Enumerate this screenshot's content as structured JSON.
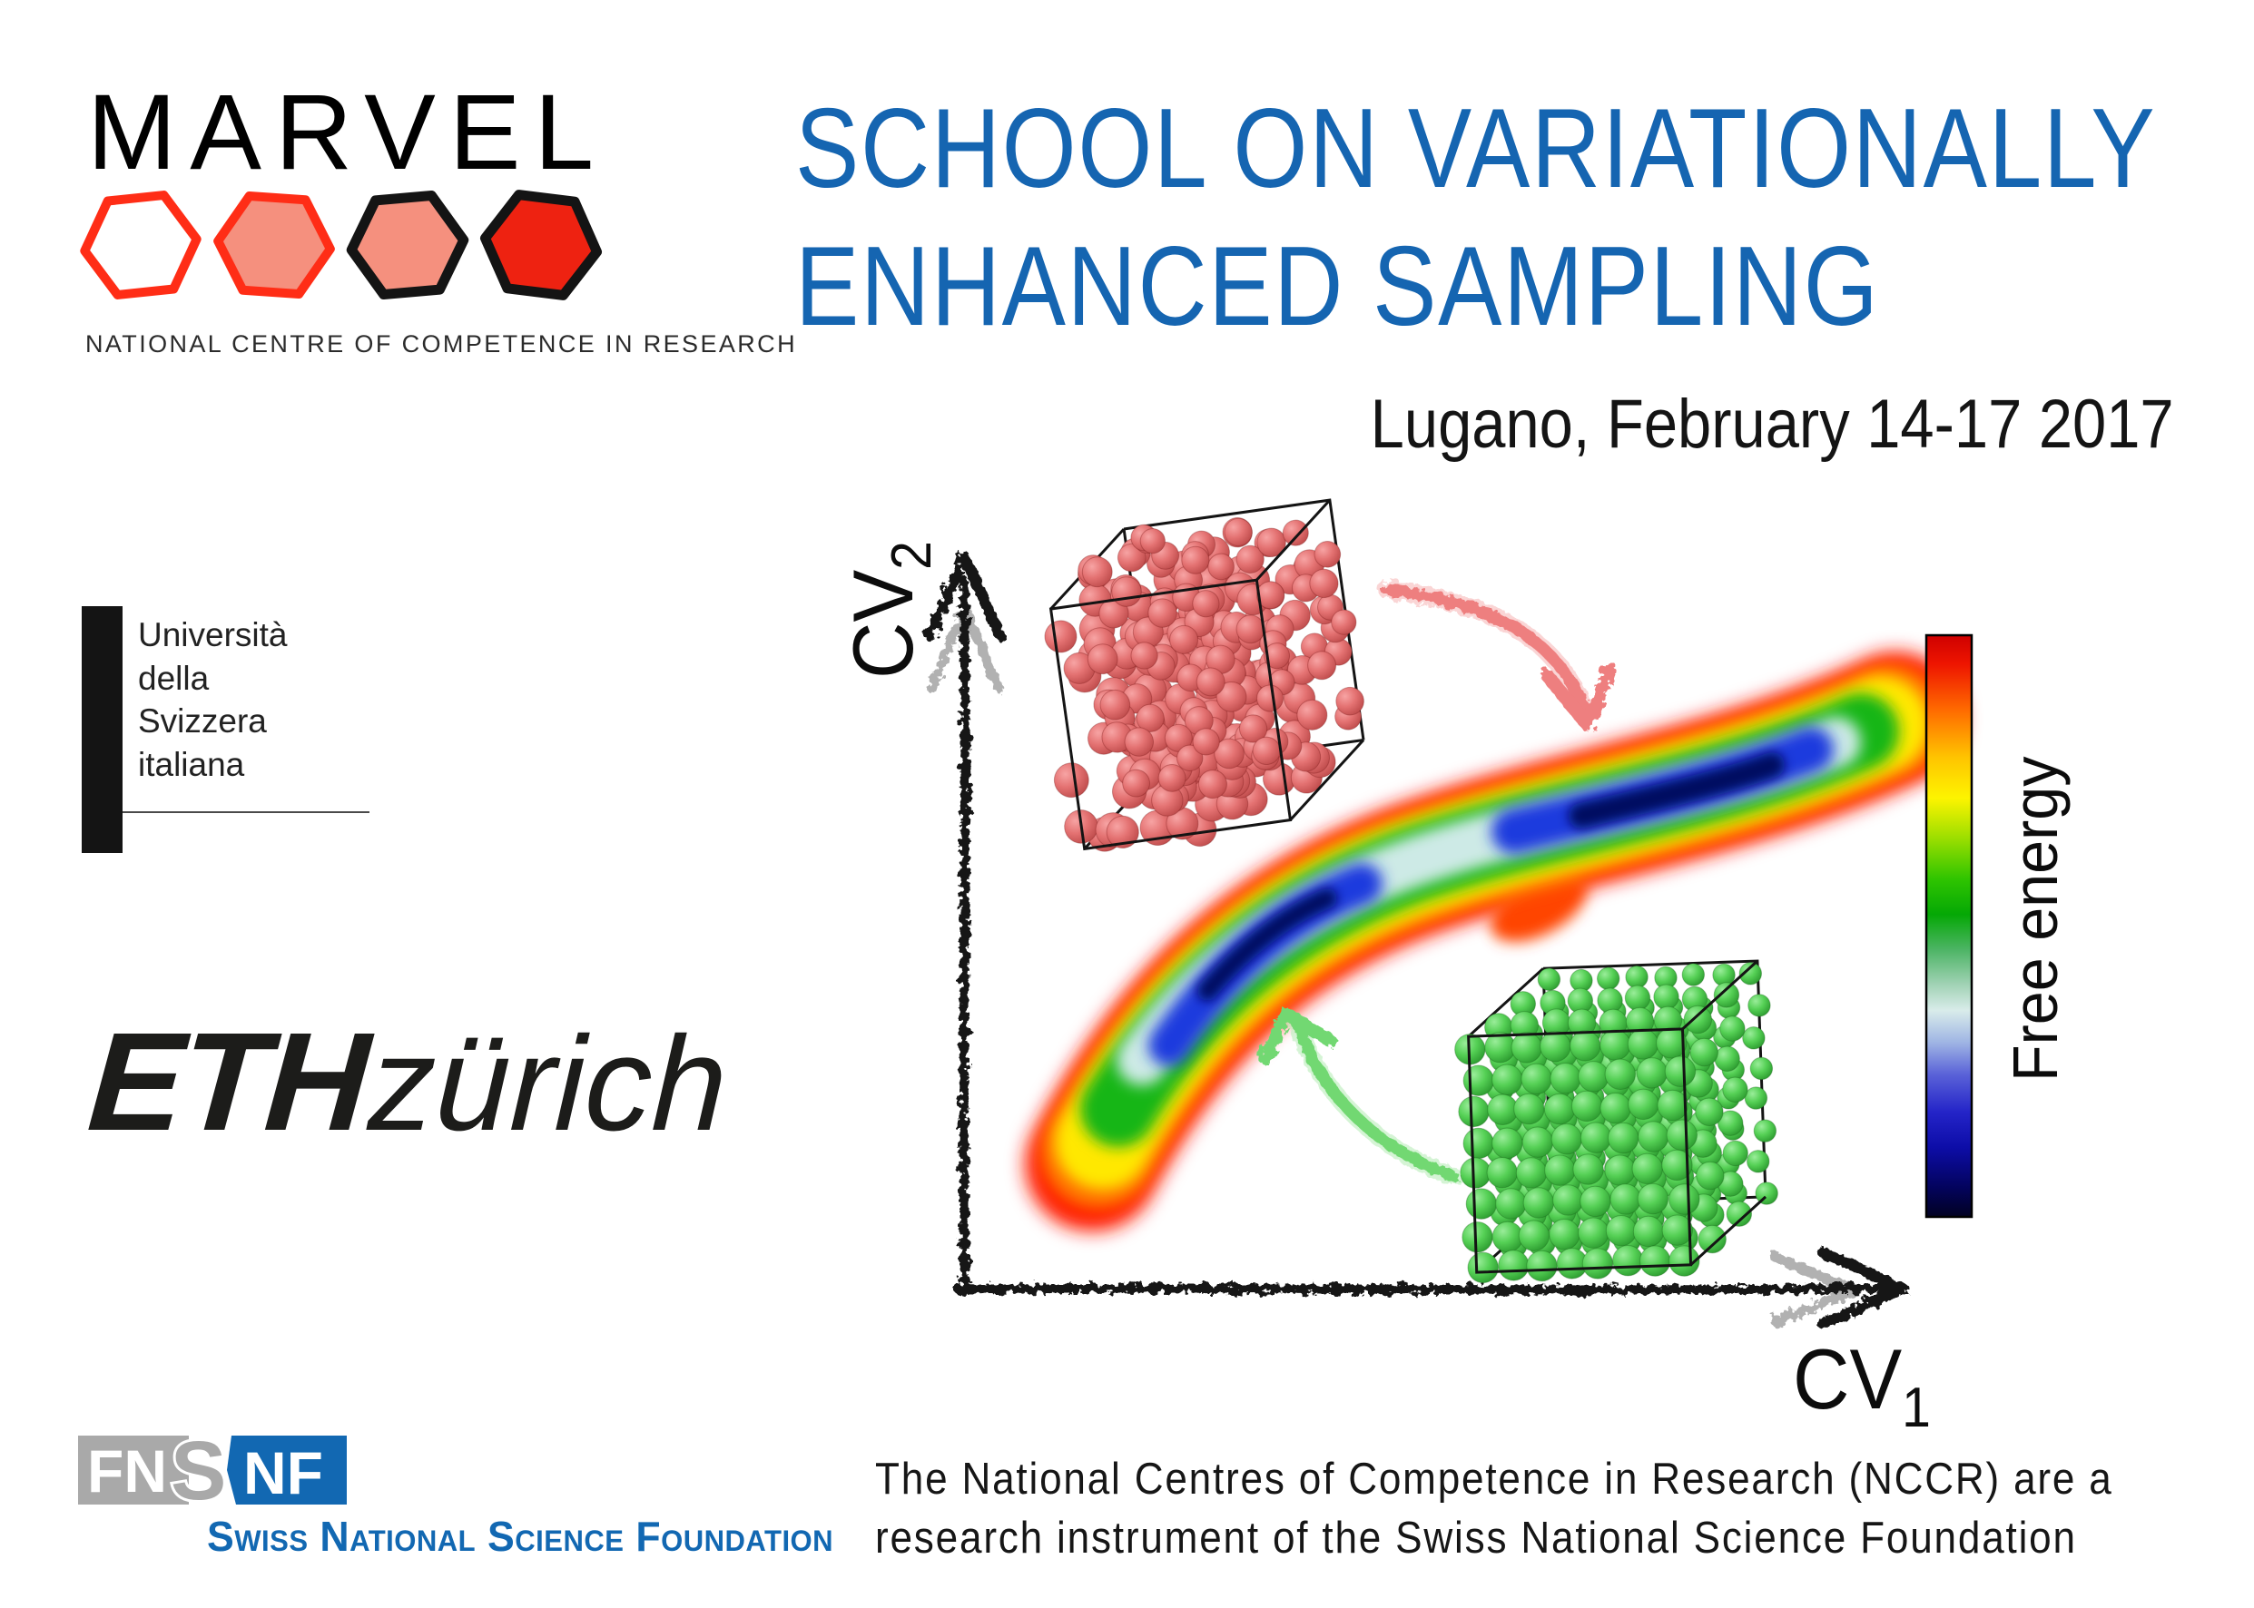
{
  "marvel": {
    "wordmark": "MARVEL",
    "caption": "NATIONAL CENTRE OF COMPETENCE IN RESEARCH",
    "hexagons": [
      {
        "name": "hexagon-outline-red",
        "fill": "#ffffff",
        "stroke": "#ff2d16"
      },
      {
        "name": "hexagon-salmon-red",
        "fill": "#f5907e",
        "stroke": "#ff2d16"
      },
      {
        "name": "hexagon-salmon-black",
        "fill": "#f5907e",
        "stroke": "#141414"
      },
      {
        "name": "hexagon-red-black",
        "fill": "#ee2211",
        "stroke": "#141414"
      }
    ]
  },
  "title": {
    "line1": "SCHOOL ON VARIATIONALLY",
    "line2": "ENHANCED SAMPLING",
    "color": "#1565b1"
  },
  "event": {
    "location_date": "Lugano, February 14-17 2017"
  },
  "usi": {
    "line1": "Università",
    "line2": "della",
    "line3": "Svizzera",
    "line4": "italiana"
  },
  "eth": {
    "bold": "ETH",
    "light": "zürich"
  },
  "snsf": {
    "box1_text": "FN",
    "shared_s": "S",
    "box2_text": "NF",
    "caption": "Swiss National Science Foundation",
    "gray": "#a9a9a9",
    "blue": "#1268b2"
  },
  "nccr_note": {
    "line1": "The National Centres of Competence in Research (NCCR) are a",
    "line2": "research instrument of the Swiss National Science Foundation"
  },
  "figure": {
    "x_axis": {
      "base": "CV",
      "sub": "1"
    },
    "y_axis": {
      "base": "CV",
      "sub": "2"
    },
    "colorbar": {
      "label": "Free energy",
      "stops": [
        "#cf0000",
        "#ee1500",
        "#ff6c00",
        "#ffc400",
        "#fdf400",
        "#9ade00",
        "#2ec400",
        "#05a805",
        "#4cb464",
        "#a0d2b4",
        "#d9ecea",
        "#9fb5e4",
        "#5a62d8",
        "#2424c8",
        "#0d0da8",
        "#03035c",
        "#020222"
      ]
    },
    "icons": {
      "red_cube": "disordered-liquid-particles-cube",
      "green_cube": "ordered-solid-particles-cube",
      "red_arrow": "red-curved-arrow-to-surface",
      "green_arrow": "green-curved-arrow-to-surface",
      "surface": "free-energy-surface-two-basins"
    },
    "colors": {
      "red_particles": "#e06868",
      "green_particles": "#55d055",
      "red_arrow": "#ee7f7f",
      "green_arrow": "#72d872"
    }
  }
}
